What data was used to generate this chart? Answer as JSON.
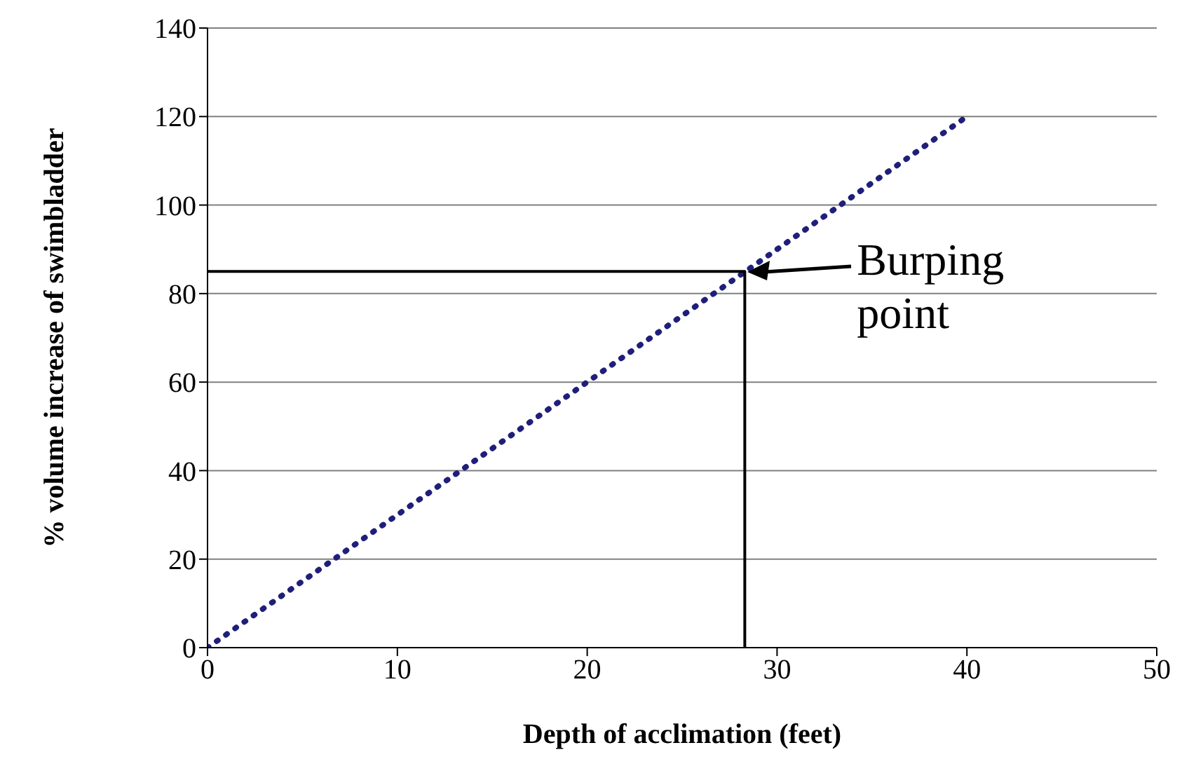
{
  "chart_data": {
    "type": "line",
    "xlabel": "Depth of acclimation (feet)",
    "ylabel": "% volume increase of swimbladder",
    "xlim": [
      0,
      50
    ],
    "xticks": [
      0,
      10,
      20,
      30,
      40,
      50
    ],
    "ylim": [
      0,
      140
    ],
    "yticks": [
      0,
      20,
      40,
      60,
      80,
      100,
      120,
      140
    ],
    "grid": "y",
    "series": [
      {
        "color": "#1f1f7a",
        "x": [
          0,
          40
        ],
        "values": [
          0,
          120
        ],
        "line_style": "dotted",
        "marker": "none"
      },
      {
        "color": "#000000",
        "x": [
          0,
          28.3,
          28.3
        ],
        "values": [
          85,
          85,
          0
        ],
        "line_style": "solid",
        "marker": "none"
      }
    ],
    "annotations": [
      {
        "text": "Burping point",
        "x": 28.3,
        "y": 85
      }
    ]
  }
}
